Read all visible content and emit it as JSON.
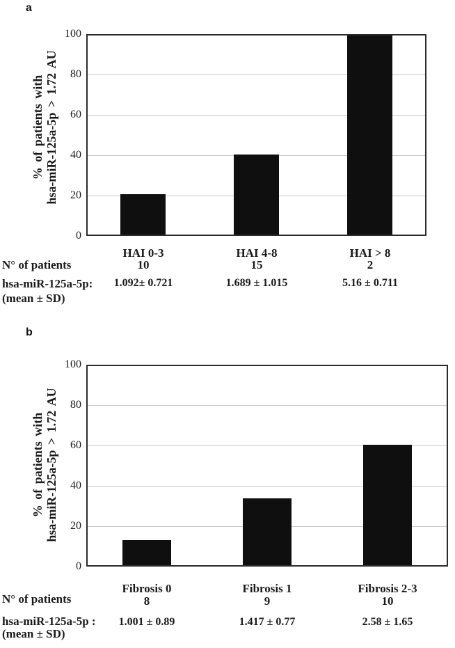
{
  "colors": {
    "bar": "#0f0f0f",
    "frame": "#2b2b2b",
    "gridline": "#c9c9c9",
    "text": "#1a1a1a"
  },
  "panels": [
    {
      "label": "a",
      "y_axis": {
        "label_line1": "% of patients with",
        "label_line2": "hsa-miR-125a-5p > 1.72 AU"
      },
      "table": {
        "patients_label": "N° of patients",
        "mir_label": "hsa-miR-125a-5p:",
        "mean_sd_label": "(mean ± SD)",
        "columns": [
          {
            "category": "HAI 0-3",
            "n": "10",
            "value": "1.092± 0.721"
          },
          {
            "category": "HAI 4-8",
            "n": "15",
            "value": "1.689 ± 1.015"
          },
          {
            "category": "HAI > 8",
            "n": "2",
            "value": "5.16 ± 0.711"
          }
        ]
      }
    },
    {
      "label": "b",
      "y_axis": {
        "label_line1": "% of patients with",
        "label_line2": "hsa-miR-125a-5p > 1.72 AU"
      },
      "table": {
        "patients_label": "N° of patients",
        "mir_label": "hsa-miR-125a-5p :",
        "mean_sd_label": "(mean ± SD)",
        "columns": [
          {
            "category": "Fibrosis 0",
            "n": "8",
            "value": "1.001 ± 0.89"
          },
          {
            "category": "Fibrosis 1",
            "n": "9",
            "value": "1.417 ± 0.77"
          },
          {
            "category": "Fibrosis 2-3",
            "n": "10",
            "value": "2.58 ± 1.65"
          }
        ]
      }
    }
  ],
  "chart_data": [
    {
      "type": "bar",
      "panel": "a",
      "title": "",
      "xlabel": "",
      "ylabel": "% of patients with hsa-miR-125a-5p > 1.72 AU",
      "categories": [
        "HAI 0-3",
        "HAI 4-8",
        "HAI > 8"
      ],
      "values": [
        20,
        40,
        100
      ],
      "n_patients": [
        10,
        15,
        2
      ],
      "mean_sd": [
        "1.092± 0.721",
        "1.689 ± 1.015",
        "5.16 ± 0.711"
      ],
      "ylim": [
        0,
        100
      ],
      "yticks": [
        0,
        20,
        40,
        60,
        80,
        100
      ],
      "grid": true,
      "legend": false,
      "bar_color": "#0f0f0f"
    },
    {
      "type": "bar",
      "panel": "b",
      "title": "",
      "xlabel": "",
      "ylabel": "% of patients with hsa-miR-125a-5p > 1.72 AU",
      "categories": [
        "Fibrosis 0",
        "Fibrosis 1",
        "Fibrosis 2-3"
      ],
      "values": [
        12.5,
        33.3,
        60
      ],
      "n_patients": [
        8,
        9,
        10
      ],
      "mean_sd": [
        "1.001 ± 0.89",
        "1.417 ± 0.77",
        "2.58 ± 1.65"
      ],
      "ylim": [
        0,
        100
      ],
      "yticks": [
        0,
        20,
        40,
        60,
        80,
        100
      ],
      "grid": true,
      "legend": false,
      "bar_color": "#0f0f0f"
    }
  ]
}
